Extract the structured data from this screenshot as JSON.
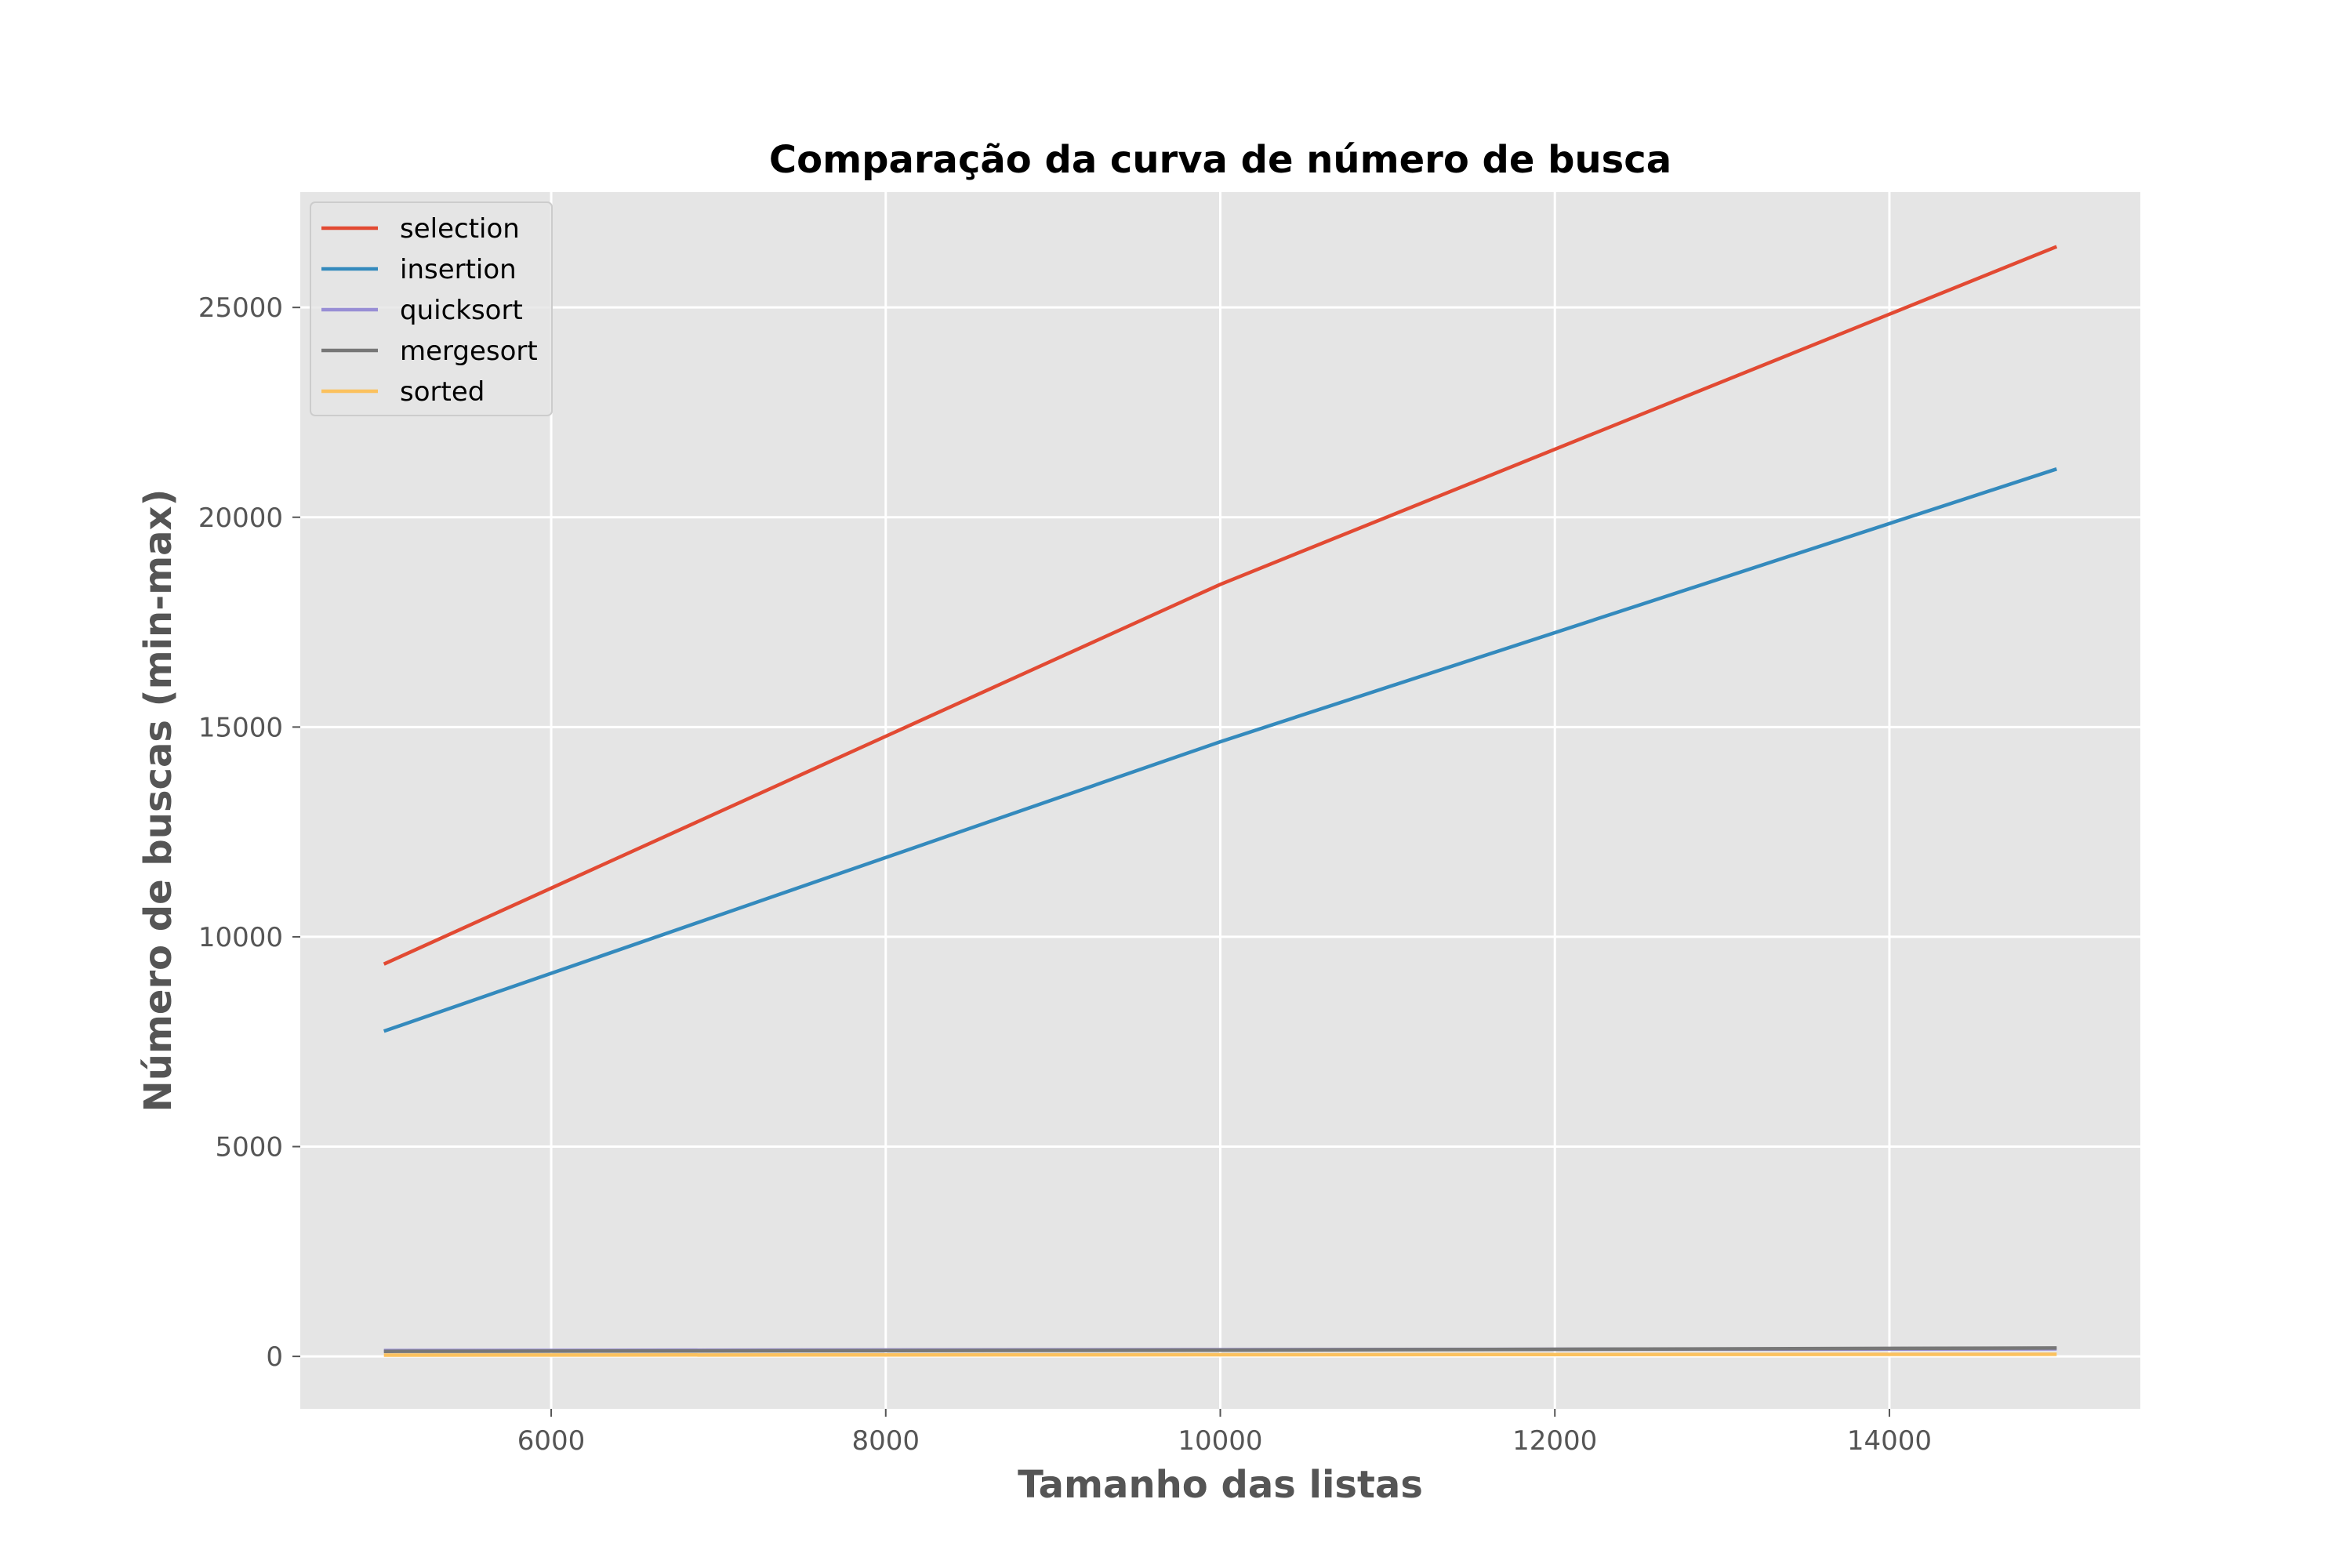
{
  "chart_data": {
    "type": "line",
    "title": "Comparação da curva de número de busca",
    "xlabel": "Tamanho das listas",
    "ylabel": "Número de buscas (min-max)",
    "xlim": [
      4500,
      15500
    ],
    "ylim": [
      -1250,
      27750
    ],
    "x_ticks": [
      6000,
      8000,
      10000,
      12000,
      14000
    ],
    "y_ticks": [
      0,
      5000,
      10000,
      15000,
      20000,
      25000
    ],
    "x": [
      5000,
      10000,
      15000
    ],
    "grid": true,
    "legend_position": "top-left",
    "series": [
      {
        "name": "selection",
        "color": "#E24A33",
        "values": [
          9350,
          18400,
          26450
        ]
      },
      {
        "name": "insertion",
        "color": "#348ABD",
        "values": [
          7750,
          14650,
          21150
        ]
      },
      {
        "name": "quicksort",
        "color": "#988ED5",
        "values": [
          140,
          160,
          180
        ]
      },
      {
        "name": "mergesort",
        "color": "#777777",
        "values": [
          120,
          150,
          200
        ]
      },
      {
        "name": "sorted",
        "color": "#FBC15E",
        "values": [
          30,
          40,
          50
        ]
      }
    ]
  }
}
